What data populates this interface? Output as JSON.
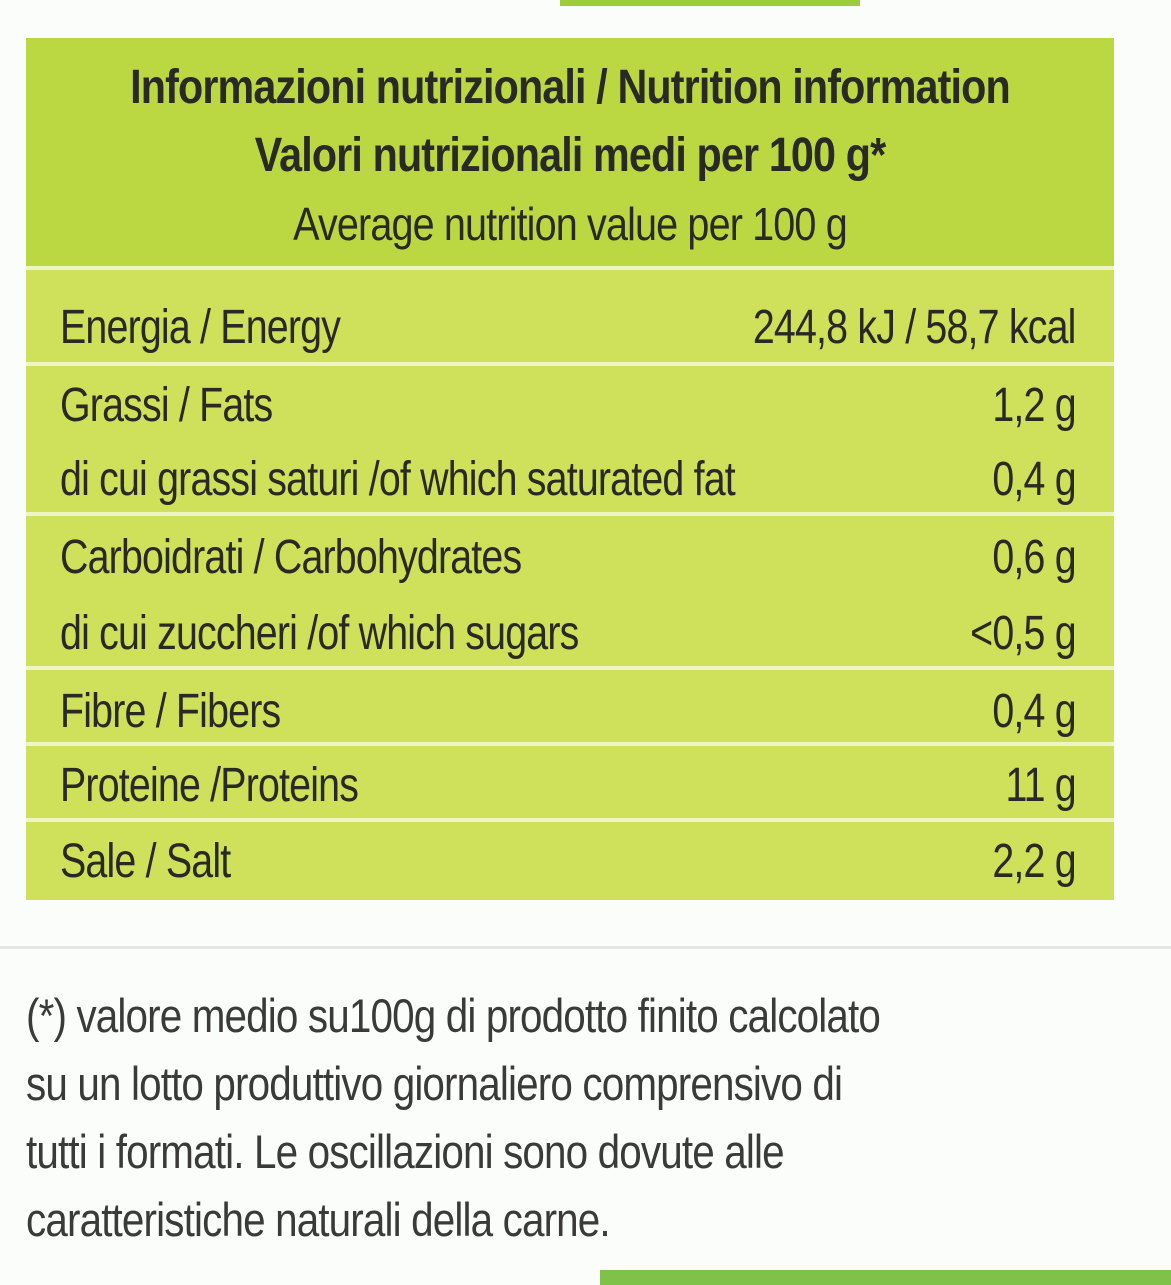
{
  "header": {
    "line1": "Informazioni nutrizionali / Nutrition information",
    "line2": "Valori nutrizionali medi per 100 g*",
    "line3": "Average nutrition value per 100 g"
  },
  "rows": [
    {
      "label": "Energia / Energy",
      "value": "244,8 kJ / 58,7 kcal"
    },
    {
      "label": "Grassi / Fats",
      "value": "1,2 g"
    },
    {
      "label": "di cui grassi saturi /of which saturated fat",
      "value": "0,4 g"
    },
    {
      "label": "Carboidrati / Carbohydrates",
      "value": "0,6 g"
    },
    {
      "label": "di cui zuccheri /of which sugars",
      "value": "<0,5 g"
    },
    {
      "label": "Fibre / Fibers",
      "value": "0,4 g"
    },
    {
      "label": "Proteine /Proteins",
      "value": "11 g"
    },
    {
      "label": "Sale / Salt",
      "value": "2,2 g"
    }
  ],
  "footnote": {
    "lines": [
      "(*) valore medio su100g di prodotto finito calcolato",
      "su un lotto produttivo giornaliero comprensivo di",
      "tutti i formati. Le oscillazioni sono dovute alle",
      "caratteristiche naturali della carne."
    ]
  },
  "colors": {
    "header_bg": "#bbd843",
    "table_bg": "#cfe05a",
    "divider": "#eef5c4",
    "accent_green": "#7fc24a"
  }
}
